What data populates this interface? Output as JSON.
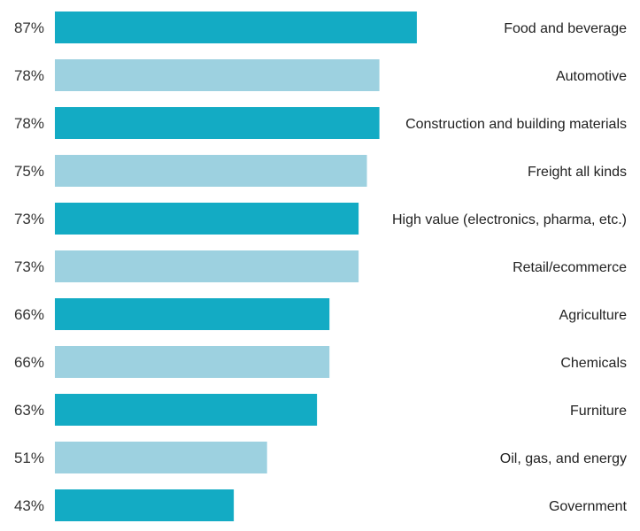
{
  "chart_data": {
    "type": "bar",
    "orientation": "horizontal",
    "categories": [
      "Food and beverage",
      "Automotive",
      "Construction and building materials",
      "Freight all kinds",
      "High value (electronics, pharma, etc.)",
      "Retail/ecommerce",
      "Agriculture",
      "Chemicals",
      "Furniture",
      "Oil, gas, and energy",
      "Government"
    ],
    "values": [
      87,
      78,
      78,
      75,
      73,
      73,
      66,
      66,
      63,
      51,
      43
    ],
    "value_labels": [
      "87%",
      "78%",
      "78%",
      "75%",
      "73%",
      "73%",
      "66%",
      "66%",
      "63%",
      "51%",
      "43%"
    ],
    "unit": "%",
    "xlim": [
      0,
      100
    ],
    "grid": false,
    "legend": "none",
    "colors": [
      "#13abc4",
      "#9dd1e0"
    ],
    "title": "",
    "xlabel": "",
    "ylabel": ""
  }
}
